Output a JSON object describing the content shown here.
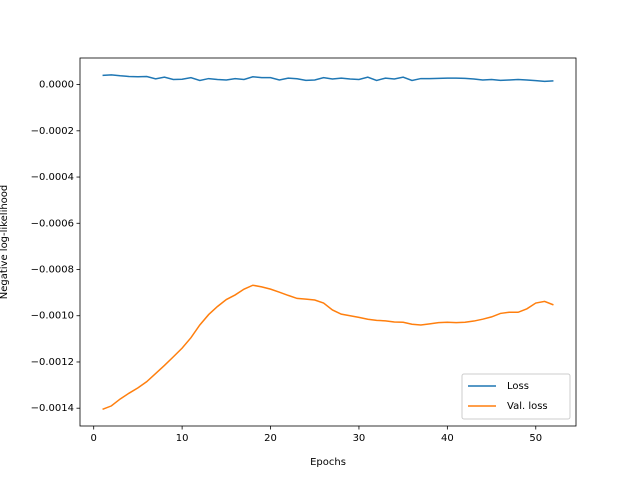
{
  "chart_data": {
    "type": "line",
    "xlabel": "Epochs",
    "ylabel": "Negative log-likelihood",
    "x": [
      1,
      2,
      3,
      4,
      5,
      6,
      7,
      8,
      9,
      10,
      11,
      12,
      13,
      14,
      15,
      16,
      17,
      18,
      19,
      20,
      21,
      22,
      23,
      24,
      25,
      26,
      27,
      28,
      29,
      30,
      31,
      32,
      33,
      34,
      35,
      36,
      37,
      38,
      39,
      40,
      41,
      42,
      43,
      44,
      45,
      46,
      47,
      48,
      49,
      50,
      51,
      52
    ],
    "series": [
      {
        "name": "Loss",
        "color": "#1f77b4",
        "values": [
          4e-05,
          4.2e-05,
          3.8e-05,
          3.5e-05,
          3.4e-05,
          3.5e-05,
          2.5e-05,
          3.2e-05,
          2.2e-05,
          2.3e-05,
          3e-05,
          1.8e-05,
          2.6e-05,
          2.2e-05,
          2e-05,
          2.6e-05,
          2.2e-05,
          3.4e-05,
          3e-05,
          3e-05,
          2e-05,
          2.8e-05,
          2.5e-05,
          1.8e-05,
          2e-05,
          3e-05,
          2.4e-05,
          2.8e-05,
          2.4e-05,
          2.2e-05,
          3.2e-05,
          1.8e-05,
          2.8e-05,
          2.4e-05,
          3.2e-05,
          1.8e-05,
          2.6e-05,
          2.6e-05,
          2.7e-05,
          2.8e-05,
          2.8e-05,
          2.7e-05,
          2.4e-05,
          2e-05,
          2.2e-05,
          1.8e-05,
          2e-05,
          2.2e-05,
          2e-05,
          1.7e-05,
          1.4e-05,
          1.6e-05
        ]
      },
      {
        "name": "Val. loss",
        "color": "#ff7f0e",
        "values": [
          -0.001405,
          -0.00139,
          -0.00136,
          -0.001335,
          -0.001312,
          -0.001285,
          -0.00125,
          -0.001215,
          -0.001178,
          -0.00114,
          -0.001095,
          -0.00104,
          -0.000995,
          -0.00096,
          -0.00093,
          -0.00091,
          -0.000885,
          -0.000868,
          -0.000875,
          -0.000885,
          -0.000898,
          -0.000912,
          -0.000925,
          -0.000928,
          -0.000932,
          -0.000945,
          -0.000975,
          -0.000993,
          -0.001,
          -0.001007,
          -0.001015,
          -0.00102,
          -0.001022,
          -0.001027,
          -0.001028,
          -0.001037,
          -0.00104,
          -0.001035,
          -0.00103,
          -0.001028,
          -0.00103,
          -0.001028,
          -0.001023,
          -0.001015,
          -0.001005,
          -0.00099,
          -0.000985,
          -0.000985,
          -0.00097,
          -0.000945,
          -0.000938,
          -0.000953
        ]
      }
    ],
    "xlim": [
      -1.55,
      54.55
    ],
    "xticks": [
      0,
      10,
      20,
      30,
      40,
      50
    ],
    "ylim": [
      -0.001477,
      0.000115
    ],
    "yticks": [
      {
        "value": 0,
        "label": "0.0000"
      },
      {
        "value": -0.0002,
        "label": "−0.0002"
      },
      {
        "value": -0.0004,
        "label": "−0.0004"
      },
      {
        "value": -0.0006,
        "label": "−0.0006"
      },
      {
        "value": -0.0008,
        "label": "−0.0008"
      },
      {
        "value": -0.001,
        "label": "−0.0010"
      },
      {
        "value": -0.0012,
        "label": "−0.0012"
      },
      {
        "value": -0.0014,
        "label": "−0.0014"
      }
    ],
    "legend": "lower right"
  }
}
